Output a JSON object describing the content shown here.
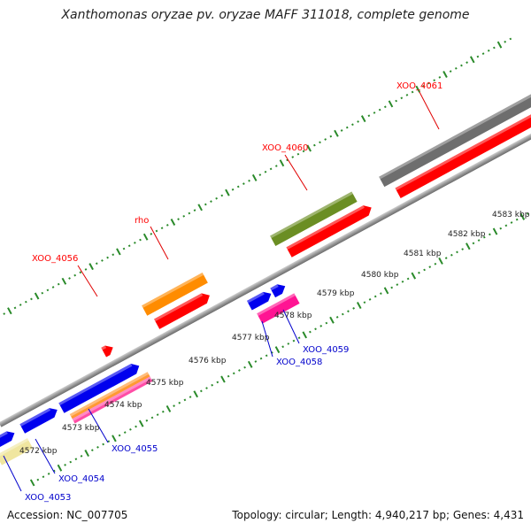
{
  "title": "Xanthomonas oryzae pv. oryzae MAFF 311018, complete genome",
  "footer": {
    "accession": "Accession: NC_007705",
    "summary": "Topology: circular; Length: 4,940,217 bp; Genes: 4,431"
  },
  "colors": {
    "backbone": "#909090",
    "tick": "#2a8a2a",
    "top_label": "#e00000",
    "bottom_label": "#0000cc"
  },
  "kbp_labels": [
    "4572 kbp",
    "4573 kbp",
    "4574 kbp",
    "4575 kbp",
    "4576 kbp",
    "4577 kbp",
    "4578 kbp",
    "4579 kbp",
    "4580 kbp",
    "4581 kbp",
    "4582 kbp",
    "4583 kbp"
  ],
  "genes_top": [
    {
      "label": "XOO_4056",
      "color": "#ff0000"
    },
    {
      "label": "rho",
      "color": "#ff0000"
    },
    {
      "label": "XOO_4060",
      "color": "#ff0000"
    },
    {
      "label": "XOO_4061",
      "color": "#ff0000"
    }
  ],
  "genes_bottom": [
    {
      "label": "XOO_4053",
      "color": "#0000cc"
    },
    {
      "label": "XOO_4054",
      "color": "#0000cc"
    },
    {
      "label": "XOO_4055",
      "color": "#0000cc"
    },
    {
      "label": "XOO_4058",
      "color": "#0000cc"
    },
    {
      "label": "XOO_4059",
      "color": "#0000cc"
    }
  ]
}
